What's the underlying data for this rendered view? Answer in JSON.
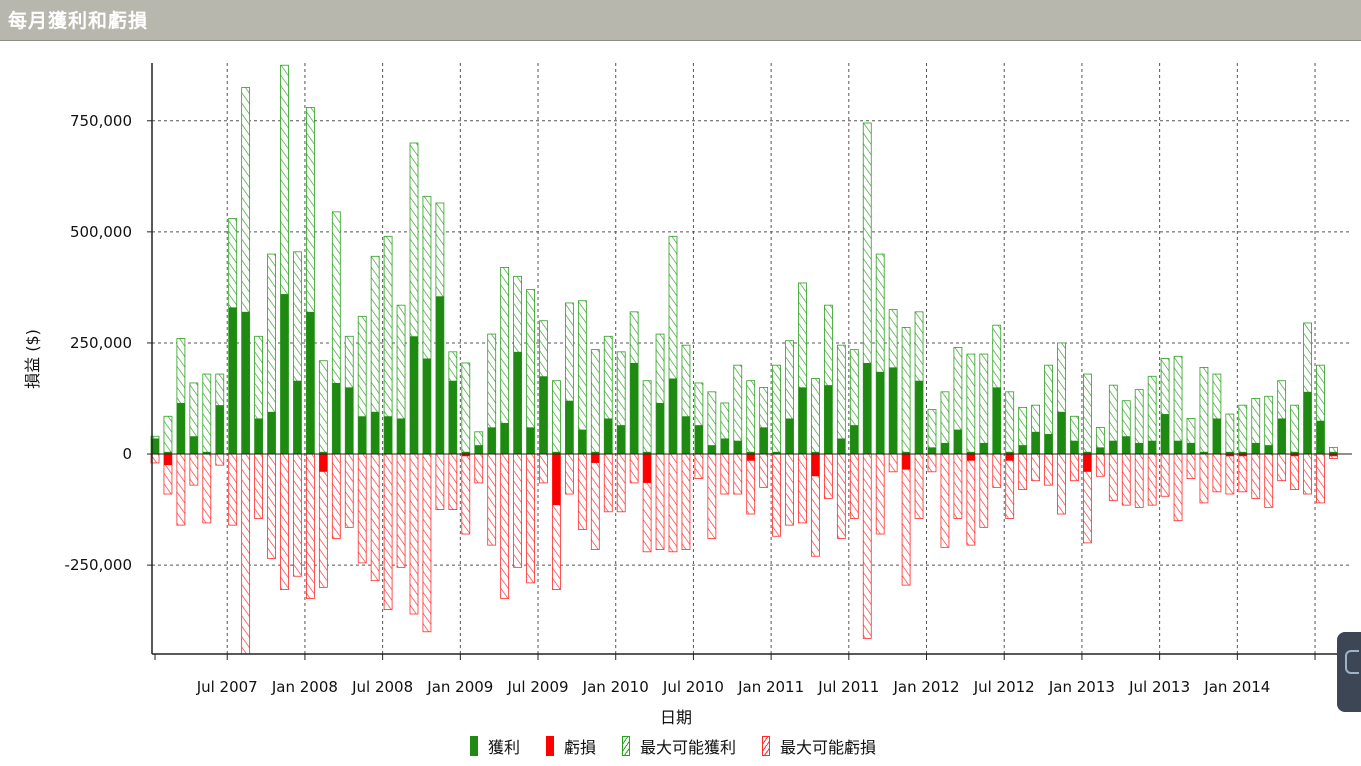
{
  "window": {
    "title": "每月獲利和虧損"
  },
  "colors": {
    "profit": "#1f8a12",
    "loss": "#ff0000",
    "maxProfit": "#2aa01e",
    "maxLoss": "#ff2a2a",
    "titleBar": "#b7b7ad"
  },
  "legend": [
    {
      "label": "獲利",
      "style": "solid",
      "color": "#1f8a12"
    },
    {
      "label": "虧損",
      "style": "solid",
      "color": "#ff0000"
    },
    {
      "label": "最大可能獲利",
      "style": "hatch",
      "color": "#2aa01e"
    },
    {
      "label": "最大可能虧損",
      "style": "hatch",
      "color": "#ff2a2a"
    }
  ],
  "side_tab": {
    "icon": "panel-collapse-icon"
  },
  "chart_data": {
    "type": "bar",
    "title": "每月獲利和虧損",
    "xlabel": "日期",
    "ylabel": "損益 ($)",
    "ylim": [
      -450000,
      880000
    ],
    "yticks": [
      -250000,
      0,
      250000,
      500000,
      750000
    ],
    "ytick_labels": [
      "-250,000",
      "0",
      "250,000",
      "500,000",
      "750,000"
    ],
    "xtick_labels": [
      "Jul 2007",
      "Jan 2008",
      "Jul 2008",
      "Jan 2009",
      "Jul 2009",
      "Jan 2010",
      "Jul 2010",
      "Jan 2011",
      "Jul 2011",
      "Jan 2012",
      "Jul 2012",
      "Jan 2013",
      "Jul 2013",
      "Jan 2014"
    ],
    "xtick_month_index": [
      6,
      12,
      18,
      24,
      30,
      36,
      42,
      48,
      54,
      60,
      66,
      72,
      78,
      84
    ],
    "grid": true,
    "legend_position": "bottom",
    "series": [
      {
        "name": "獲利",
        "values": [
          35000,
          5000,
          115000,
          40000,
          5000,
          110000,
          330000,
          320000,
          80000,
          95000,
          360000,
          165000,
          320000,
          5000,
          160000,
          150000,
          85000,
          95000,
          85000,
          80000,
          265000,
          215000,
          355000,
          165000,
          5000,
          20000,
          60000,
          70000,
          230000,
          60000,
          175000,
          5000,
          120000,
          55000,
          5000,
          80000,
          65000,
          205000,
          5000,
          115000,
          170000,
          85000,
          65000,
          20000,
          35000,
          30000,
          5000,
          60000,
          5000,
          80000,
          150000,
          5000,
          155000,
          35000,
          65000,
          205000,
          185000,
          195000,
          5000,
          165000,
          15000,
          25000,
          55000,
          5000,
          25000,
          150000,
          5000,
          20000,
          50000,
          45000,
          95000,
          30000,
          5000,
          15000,
          30000,
          40000,
          25000,
          30000,
          90000,
          30000,
          25000,
          5000,
          80000,
          5000,
          5000,
          25000,
          20000,
          80000,
          5000,
          140000,
          75000,
          5000
        ]
      },
      {
        "name": "虧損",
        "values": [
          0,
          -25000,
          0,
          0,
          0,
          0,
          0,
          0,
          0,
          0,
          0,
          0,
          0,
          -40000,
          0,
          0,
          0,
          0,
          0,
          0,
          0,
          0,
          0,
          0,
          -5000,
          0,
          0,
          0,
          0,
          0,
          0,
          -115000,
          0,
          0,
          -20000,
          0,
          0,
          0,
          -65000,
          0,
          0,
          0,
          0,
          0,
          0,
          0,
          -15000,
          0,
          0,
          0,
          0,
          -50000,
          0,
          0,
          0,
          0,
          0,
          0,
          -35000,
          0,
          0,
          0,
          0,
          -15000,
          0,
          0,
          -15000,
          0,
          0,
          0,
          0,
          0,
          -40000,
          0,
          0,
          0,
          0,
          0,
          0,
          0,
          0,
          0,
          0,
          -5000,
          -5000,
          0,
          0,
          0,
          -5000,
          0,
          0,
          -5000
        ]
      },
      {
        "name": "最大可能獲利",
        "values": [
          40000,
          85000,
          260000,
          160000,
          180000,
          180000,
          530000,
          825000,
          265000,
          450000,
          875000,
          455000,
          780000,
          210000,
          545000,
          265000,
          310000,
          445000,
          490000,
          335000,
          700000,
          580000,
          565000,
          230000,
          205000,
          50000,
          270000,
          420000,
          400000,
          370000,
          300000,
          165000,
          340000,
          345000,
          235000,
          265000,
          230000,
          320000,
          165000,
          270000,
          490000,
          245000,
          160000,
          140000,
          115000,
          200000,
          165000,
          150000,
          200000,
          255000,
          385000,
          170000,
          335000,
          245000,
          235000,
          745000,
          450000,
          325000,
          285000,
          320000,
          100000,
          140000,
          240000,
          225000,
          225000,
          290000,
          140000,
          105000,
          110000,
          200000,
          250000,
          85000,
          180000,
          60000,
          155000,
          120000,
          145000,
          175000,
          215000,
          220000,
          80000,
          195000,
          180000,
          90000,
          110000,
          125000,
          130000,
          165000,
          110000,
          295000,
          200000,
          15000
        ]
      },
      {
        "name": "最大可能虧損",
        "values": [
          -20000,
          -90000,
          -160000,
          -70000,
          -155000,
          -25000,
          -160000,
          -450000,
          -145000,
          -235000,
          -305000,
          -275000,
          -325000,
          -300000,
          -190000,
          -165000,
          -245000,
          -285000,
          -350000,
          -255000,
          -360000,
          -400000,
          -125000,
          -125000,
          -180000,
          -65000,
          -205000,
          -325000,
          -255000,
          -290000,
          -65000,
          -305000,
          -90000,
          -170000,
          -215000,
          -130000,
          -130000,
          -65000,
          -220000,
          -215000,
          -220000,
          -215000,
          -55000,
          -190000,
          -90000,
          -90000,
          -135000,
          -75000,
          -185000,
          -160000,
          -155000,
          -230000,
          -100000,
          -190000,
          -145000,
          -415000,
          -180000,
          -40000,
          -295000,
          -145000,
          -40000,
          -210000,
          -145000,
          -205000,
          -165000,
          -75000,
          -145000,
          -80000,
          -60000,
          -70000,
          -135000,
          -60000,
          -200000,
          -50000,
          -105000,
          -115000,
          -120000,
          -115000,
          -95000,
          -150000,
          -55000,
          -110000,
          -85000,
          -90000,
          -85000,
          -100000,
          -120000,
          -60000,
          -80000,
          -90000,
          -110000,
          -10000
        ]
      }
    ]
  }
}
